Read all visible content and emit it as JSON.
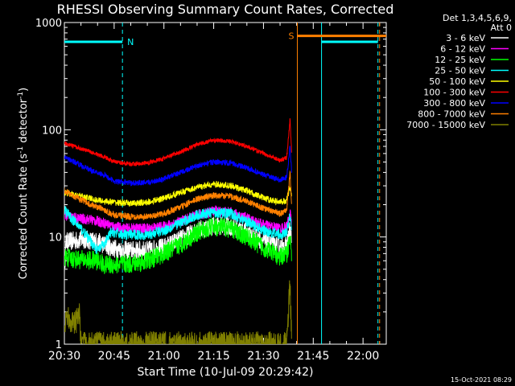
{
  "chart_data": {
    "type": "line",
    "title": "RHESSI Observing Summary Count Rates, Corrected",
    "xlabel": "Start Time (10-Jul-09 20:29:42)",
    "ylabel_main": "Corrected Count Rate (s",
    "ylabel_sup1": "-1",
    "ylabel_mid": " detector",
    "ylabel_sup2": "-1",
    "ylabel_end": ")",
    "yscale": "log",
    "ylim": [
      1,
      1000
    ],
    "xlim_minutes": [
      0,
      97
    ],
    "x_ticks": [
      {
        "minute": 0,
        "label": "20:30"
      },
      {
        "minute": 15,
        "label": "20:45"
      },
      {
        "minute": 30,
        "label": "21:00"
      },
      {
        "minute": 45,
        "label": "21:15"
      },
      {
        "minute": 60,
        "label": "21:30"
      },
      {
        "minute": 75,
        "label": "21:45"
      },
      {
        "minute": 90,
        "label": "22:00"
      }
    ],
    "y_ticks": [
      {
        "value": 1,
        "label": "1"
      },
      {
        "value": 10,
        "label": "10"
      },
      {
        "value": 100,
        "label": "100"
      },
      {
        "value": 1000,
        "label": "1000"
      }
    ],
    "legend": {
      "header": [
        "Det 1,3,4,5,6,9,",
        "Att 0"
      ],
      "placement": "top-right outside"
    },
    "series": [
      {
        "name": "3 - 6 keV",
        "color": "#ffffff",
        "keypoints": [
          [
            0,
            5.0
          ],
          [
            0.5,
            9
          ],
          [
            3,
            9.2
          ],
          [
            6,
            9.5
          ],
          [
            10,
            9
          ],
          [
            12,
            8.5
          ],
          [
            15,
            7.8
          ],
          [
            18,
            7.5
          ],
          [
            25,
            7.5
          ],
          [
            30,
            8
          ],
          [
            35,
            9.5
          ],
          [
            40,
            11.5
          ],
          [
            45,
            12.8
          ],
          [
            50,
            12.6
          ],
          [
            55,
            11
          ],
          [
            60,
            9
          ],
          [
            65,
            8
          ],
          [
            67,
            8.2
          ],
          [
            68,
            12
          ],
          [
            68.5,
            9
          ]
        ],
        "noise": 0.09
      },
      {
        "name": "6 - 12 keV",
        "color": "#ff00ff",
        "keypoints": [
          [
            0,
            16
          ],
          [
            3,
            15
          ],
          [
            8,
            14.5
          ],
          [
            12,
            13.5
          ],
          [
            15,
            12.5
          ],
          [
            18,
            12
          ],
          [
            25,
            12
          ],
          [
            30,
            12.5
          ],
          [
            35,
            14
          ],
          [
            40,
            16
          ],
          [
            45,
            17.5
          ],
          [
            50,
            17
          ],
          [
            55,
            15
          ],
          [
            60,
            13
          ],
          [
            65,
            12
          ],
          [
            67,
            12.5
          ],
          [
            68,
            17
          ],
          [
            68.5,
            13
          ]
        ],
        "noise": 0.05
      },
      {
        "name": "12 - 25 keV",
        "color": "#00ff00",
        "keypoints": [
          [
            0,
            6.5
          ],
          [
            3,
            6.2
          ],
          [
            10,
            6
          ],
          [
            12,
            5.5
          ],
          [
            15,
            5.5
          ],
          [
            20,
            5.6
          ],
          [
            25,
            6
          ],
          [
            30,
            7
          ],
          [
            35,
            8.5
          ],
          [
            40,
            11
          ],
          [
            45,
            12.5
          ],
          [
            50,
            12
          ],
          [
            55,
            10
          ],
          [
            60,
            8
          ],
          [
            65,
            6.5
          ],
          [
            67,
            7
          ],
          [
            68,
            10
          ],
          [
            68.5,
            7
          ]
        ],
        "noise": 0.09
      },
      {
        "name": "25 - 50 keV",
        "color": "#00ffff",
        "keypoints": [
          [
            0,
            18
          ],
          [
            2,
            15
          ],
          [
            5,
            12
          ],
          [
            8,
            9
          ],
          [
            10,
            7.5
          ],
          [
            12,
            8.5
          ],
          [
            14,
            11
          ],
          [
            15,
            11
          ],
          [
            18,
            10.5
          ],
          [
            25,
            10.5
          ],
          [
            30,
            11.5
          ],
          [
            35,
            13.5
          ],
          [
            40,
            16
          ],
          [
            45,
            17
          ],
          [
            50,
            16.5
          ],
          [
            55,
            14
          ],
          [
            60,
            11.5
          ],
          [
            65,
            10.5
          ],
          [
            67,
            11
          ],
          [
            68,
            16
          ],
          [
            68.5,
            11
          ]
        ],
        "noise": 0.05
      },
      {
        "name": "50 - 100 keV",
        "color": "#ffff00",
        "keypoints": [
          [
            0,
            26
          ],
          [
            5,
            24
          ],
          [
            10,
            22
          ],
          [
            15,
            21
          ],
          [
            20,
            20.5
          ],
          [
            25,
            21
          ],
          [
            30,
            23
          ],
          [
            35,
            26
          ],
          [
            40,
            29
          ],
          [
            45,
            31
          ],
          [
            50,
            30
          ],
          [
            55,
            27
          ],
          [
            60,
            23
          ],
          [
            65,
            21
          ],
          [
            67,
            22
          ],
          [
            68,
            30
          ],
          [
            68.5,
            24
          ]
        ],
        "noise": 0.03
      },
      {
        "name": "100 - 300 keV",
        "color": "#ff0000",
        "keypoints": [
          [
            0,
            75
          ],
          [
            3,
            70
          ],
          [
            8,
            62
          ],
          [
            12,
            56
          ],
          [
            15,
            50
          ],
          [
            20,
            48
          ],
          [
            25,
            49
          ],
          [
            30,
            54
          ],
          [
            35,
            62
          ],
          [
            40,
            73
          ],
          [
            45,
            80
          ],
          [
            50,
            78
          ],
          [
            55,
            70
          ],
          [
            60,
            60
          ],
          [
            65,
            52
          ],
          [
            67,
            55
          ],
          [
            68,
            125
          ],
          [
            68.5,
            60
          ]
        ],
        "noise": 0.02
      },
      {
        "name": "300 - 800 keV",
        "color": "#0000ff",
        "keypoints": [
          [
            0,
            55
          ],
          [
            3,
            50
          ],
          [
            8,
            42
          ],
          [
            12,
            38
          ],
          [
            15,
            33
          ],
          [
            20,
            32
          ],
          [
            25,
            32
          ],
          [
            30,
            35
          ],
          [
            35,
            40
          ],
          [
            40,
            46
          ],
          [
            45,
            50
          ],
          [
            50,
            49
          ],
          [
            55,
            44
          ],
          [
            60,
            38
          ],
          [
            65,
            34
          ],
          [
            67,
            36
          ],
          [
            68,
            70
          ],
          [
            68.5,
            40
          ]
        ],
        "noise": 0.025
      },
      {
        "name": "800 - 7000 keV",
        "color": "#ff8000",
        "keypoints": [
          [
            0,
            27
          ],
          [
            3,
            24
          ],
          [
            8,
            20
          ],
          [
            12,
            18
          ],
          [
            15,
            16
          ],
          [
            20,
            15.5
          ],
          [
            25,
            15.5
          ],
          [
            30,
            16.5
          ],
          [
            35,
            19
          ],
          [
            40,
            22.5
          ],
          [
            45,
            24.5
          ],
          [
            50,
            24
          ],
          [
            55,
            21.5
          ],
          [
            60,
            18.5
          ],
          [
            65,
            16.5
          ],
          [
            67,
            17.5
          ],
          [
            68,
            40
          ],
          [
            68.5,
            20
          ]
        ],
        "noise": 0.03
      },
      {
        "name": "7000 - 15000 keV",
        "color": "#808000",
        "keypoints": [
          [
            0,
            1.5
          ],
          [
            0.5,
            1.9
          ],
          [
            3,
            1.5
          ],
          [
            4.5,
            1.9
          ],
          [
            5,
            1.0
          ],
          [
            67,
            1.0
          ],
          [
            67.5,
            2
          ],
          [
            68,
            4
          ],
          [
            68.5,
            1
          ]
        ],
        "noise": 0.12
      }
    ],
    "annotations": {
      "night_bar": {
        "label": "N",
        "color": "#00ffff",
        "from_minute": 0,
        "to_minute": 17.5,
        "level": 660
      },
      "saa_bar": {
        "label": "S",
        "color": "#ff8000",
        "from_minute": 70.2,
        "to_minute": 97,
        "level": 750
      },
      "second_night_bar": {
        "color": "#00ffff",
        "from_minute": 77.5,
        "to_minute": 94.5,
        "level": 660
      },
      "vlines": [
        {
          "minute": 17.5,
          "color": "#00ffff",
          "dashed": true
        },
        {
          "minute": 70.2,
          "color": "#ff8000",
          "dashed": false
        },
        {
          "minute": 77.5,
          "color": "#00ffff",
          "dashed": false
        },
        {
          "minute": 94.5,
          "color": "#00ffff",
          "dashed": true
        },
        {
          "minute": 95.0,
          "color": "#ff8000",
          "dashed": true
        }
      ]
    },
    "footer_date": "15-Oct-2021 08:29"
  }
}
